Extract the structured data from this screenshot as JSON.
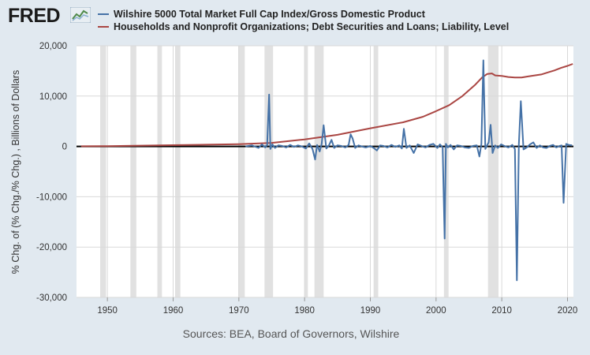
{
  "header": {
    "logo_text": "FRED",
    "logo_icon": "line-chart-icon"
  },
  "colors": {
    "background": "#e1e9f0",
    "plot_bg": "#ffffff",
    "grid": "#d9d9d9",
    "recession": "#e1e1e1",
    "series1": "#4572a7",
    "series2": "#aa4643",
    "zero_line": "#000000"
  },
  "legend": [
    {
      "label": "Wilshire 5000 Total Market Full Cap Index/Gross Domestic Product",
      "color": "#4572a7"
    },
    {
      "label": "Households and Nonprofit Organizations; Debt Securities and Loans; Liability, Level",
      "color": "#aa4643"
    }
  ],
  "source_text": "Sources: BEA, Board of Governors, Wilshire",
  "chart_data": {
    "type": "line",
    "title": "",
    "xlabel": "",
    "ylabel": "% Chg. of (% Chg./% Chg.) , Billions of Dollars",
    "xlim": [
      1945.3,
      2020.9
    ],
    "ylim": [
      -30000,
      20000
    ],
    "x_ticks": [
      1950,
      1960,
      1970,
      1980,
      1990,
      2000,
      2010,
      2020
    ],
    "x_tick_labels": [
      "1950",
      "1960",
      "1970",
      "1980",
      "1990",
      "2000",
      "2010",
      "2020"
    ],
    "y_ticks": [
      -30000,
      -20000,
      -10000,
      0,
      10000,
      20000
    ],
    "y_tick_labels": [
      "-30,000",
      "-20,000",
      "-10,000",
      "0",
      "10,000",
      "20,000"
    ],
    "grid": true,
    "recessions": [
      [
        1948.9,
        1949.8
      ],
      [
        1953.5,
        1954.4
      ],
      [
        1957.6,
        1958.3
      ],
      [
        1960.3,
        1961.1
      ],
      [
        1969.9,
        1970.9
      ],
      [
        1973.9,
        1975.2
      ],
      [
        1980.0,
        1980.5
      ],
      [
        1981.5,
        1982.9
      ],
      [
        1990.5,
        1991.2
      ],
      [
        2001.2,
        2001.9
      ],
      [
        2007.9,
        2009.5
      ]
    ],
    "series": [
      {
        "name": "Wilshire 5000 Total Market Full Cap Index/Gross Domestic Product",
        "color": "#4572a7",
        "x": [
          1971.0,
          1972.0,
          1973.0,
          1973.5,
          1974.0,
          1974.3,
          1974.6,
          1974.8,
          1975.1,
          1975.5,
          1976.0,
          1976.6,
          1977.2,
          1977.8,
          1978.4,
          1979.0,
          1979.6,
          1980.2,
          1980.7,
          1981.2,
          1981.6,
          1981.9,
          1982.3,
          1982.6,
          1982.9,
          1983.3,
          1983.7,
          1984.1,
          1984.5,
          1985.0,
          1985.6,
          1986.2,
          1986.7,
          1987.0,
          1987.3,
          1987.7,
          1988.2,
          1988.7,
          1989.3,
          1990.0,
          1990.5,
          1991.0,
          1991.5,
          1992.0,
          1992.6,
          1993.2,
          1993.8,
          1994.4,
          1994.8,
          1995.1,
          1995.5,
          1996.0,
          1996.6,
          1997.2,
          1997.8,
          1998.4,
          1999.0,
          1999.6,
          2000.2,
          2000.6,
          2001.0,
          2001.3,
          2001.5,
          2001.8,
          2002.2,
          2002.7,
          2003.2,
          2003.8,
          2004.4,
          2005.0,
          2005.6,
          2006.2,
          2006.6,
          2006.9,
          2007.2,
          2007.5,
          2007.8,
          2008.0,
          2008.3,
          2008.6,
          2009.0,
          2009.4,
          2009.9,
          2010.4,
          2011.0,
          2011.6,
          2012.0,
          2012.3,
          2012.6,
          2012.9,
          2013.3,
          2013.8,
          2014.3,
          2014.8,
          2015.3,
          2015.8,
          2016.3,
          2016.8,
          2017.3,
          2017.8,
          2018.3,
          2018.8,
          2019.1,
          2019.4,
          2019.8,
          2020.2,
          2020.7
        ],
        "values": [
          0,
          200,
          -300,
          400,
          -200,
          300,
          10300,
          -500,
          400,
          -300,
          200,
          100,
          -200,
          300,
          -100,
          200,
          0,
          -400,
          600,
          -500,
          -2600,
          300,
          -1000,
          500,
          4200,
          -400,
          200,
          1300,
          -300,
          200,
          100,
          -200,
          300,
          2400,
          1600,
          -300,
          200,
          0,
          -200,
          100,
          -300,
          -800,
          200,
          100,
          -200,
          300,
          -100,
          200,
          -400,
          3500,
          -300,
          200,
          -1300,
          400,
          100,
          -200,
          300,
          500,
          -300,
          400,
          -200,
          -18300,
          500,
          -200,
          300,
          -600,
          200,
          100,
          -200,
          -300,
          100,
          200,
          -2000,
          500,
          17100,
          -500,
          300,
          800,
          4300,
          -1300,
          200,
          -300,
          400,
          100,
          -200,
          300,
          -500,
          -26600,
          400,
          9000,
          -600,
          -200,
          400,
          800,
          -300,
          200,
          -200,
          -300,
          100,
          300,
          -200,
          100,
          200,
          -11200,
          500,
          300,
          200
        ]
      },
      {
        "name": "Households and Nonprofit Organizations; Debt Securities and Loans; Liability, Level",
        "color": "#aa4643",
        "x": [
          1946,
          1950,
          1955,
          1960,
          1965,
          1970,
          1975,
          1980,
          1985,
          1990,
          1995,
          1998,
          2000,
          2002,
          2004,
          2006,
          2007,
          2007.8,
          2008.5,
          2009,
          2010,
          2011,
          2012,
          2013,
          2014,
          2015,
          2016,
          2017,
          2018,
          2019,
          2020,
          2020.8
        ],
        "values": [
          30,
          70,
          160,
          250,
          350,
          460,
          700,
          1400,
          2300,
          3600,
          4800,
          5900,
          7000,
          8200,
          10000,
          12300,
          13700,
          14400,
          14500,
          14100,
          14000,
          13800,
          13700,
          13700,
          13900,
          14100,
          14300,
          14700,
          15100,
          15600,
          16000,
          16400
        ]
      }
    ]
  }
}
